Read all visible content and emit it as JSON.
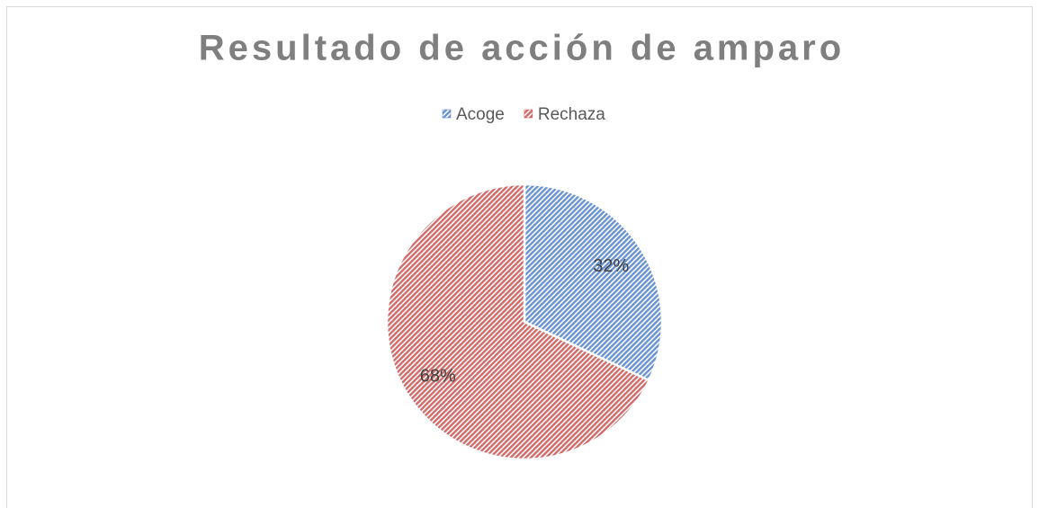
{
  "chart_data": {
    "type": "pie",
    "title": "Resultado de acción de amparo",
    "categories": [
      "Acoge",
      "Rechaza"
    ],
    "values": [
      32,
      68
    ],
    "value_labels": [
      "32%",
      "68%"
    ],
    "colors": [
      "#4f7fcb",
      "#c9504e"
    ],
    "legend": "top"
  }
}
